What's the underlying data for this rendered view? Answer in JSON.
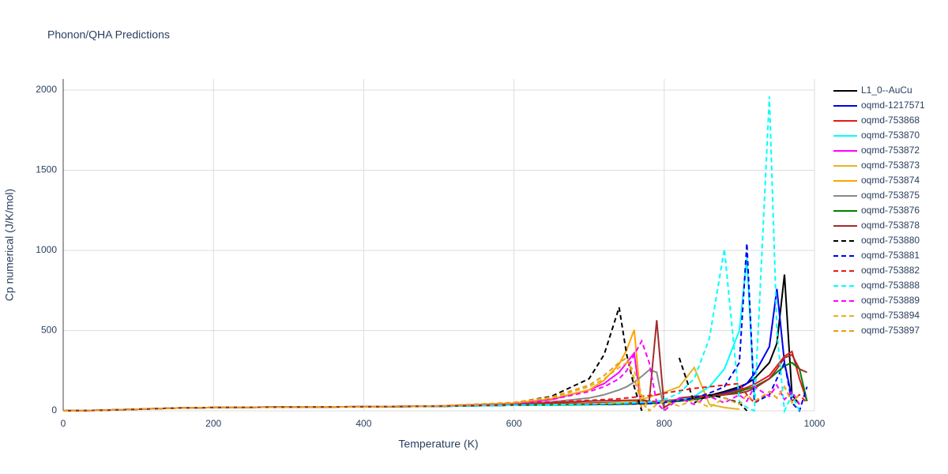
{
  "chart_data": {
    "type": "line",
    "title": "Phonon/QHA Predictions",
    "x_label": "Temperature (K)",
    "y_label": "Cp numerical (J/K/mol)",
    "xlim": [
      0,
      1000
    ],
    "ylim": [
      0,
      2000
    ],
    "xticks": [
      0,
      200,
      400,
      600,
      800,
      1000
    ],
    "yticks": [
      0,
      500,
      1000,
      1500,
      2000
    ],
    "grid": true,
    "x": [
      0,
      50,
      100,
      150,
      200,
      300,
      400,
      500,
      600,
      650,
      700,
      720,
      740,
      750,
      760,
      770,
      780,
      790,
      800,
      820,
      840,
      860,
      880,
      900,
      910,
      920,
      940,
      950,
      960,
      970,
      980,
      990
    ],
    "series": [
      {
        "name": "L1_0--AuCu",
        "color": "#000000",
        "dash": false,
        "values": [
          0,
          3,
          10,
          17,
          20,
          23,
          25,
          28,
          35,
          38,
          40,
          41,
          42,
          43,
          44,
          45,
          47,
          50,
          55,
          65,
          80,
          95,
          120,
          150,
          170,
          200,
          300,
          420,
          850,
          100,
          40,
          null
        ]
      },
      {
        "name": "oqmd-1217571",
        "color": "#0000ee",
        "dash": false,
        "values": [
          0,
          3,
          10,
          17,
          20,
          23,
          25,
          28,
          35,
          38,
          40,
          41,
          42,
          43,
          44,
          45,
          46,
          48,
          52,
          60,
          70,
          85,
          110,
          140,
          170,
          230,
          400,
          760,
          300,
          80,
          null,
          null
        ]
      },
      {
        "name": "oqmd-753868",
        "color": "#e41a1c",
        "dash": false,
        "values": [
          0,
          3,
          10,
          17,
          20,
          23,
          25,
          28,
          40,
          44,
          48,
          50,
          52,
          53,
          54,
          55,
          57,
          59,
          63,
          70,
          80,
          90,
          105,
          130,
          145,
          165,
          220,
          280,
          340,
          370,
          200,
          60
        ]
      },
      {
        "name": "oqmd-753870",
        "color": "#00ffff",
        "dash": false,
        "values": [
          0,
          3,
          10,
          17,
          20,
          23,
          25,
          28,
          35,
          36,
          38,
          40,
          42,
          43,
          44,
          45,
          47,
          50,
          55,
          65,
          90,
          150,
          260,
          500,
          950,
          80,
          null,
          null,
          null,
          null,
          null,
          null
        ]
      },
      {
        "name": "oqmd-753872",
        "color": "#ff00ff",
        "dash": false,
        "values": [
          0,
          3,
          10,
          17,
          20,
          23,
          25,
          30,
          45,
          70,
          130,
          170,
          240,
          300,
          360,
          0,
          null,
          null,
          null,
          null,
          null,
          null,
          null,
          null,
          null,
          null,
          null,
          null,
          null,
          null,
          null,
          null
        ]
      },
      {
        "name": "oqmd-753873",
        "color": "#e6b422",
        "dash": false,
        "values": [
          0,
          3,
          10,
          17,
          20,
          23,
          25,
          28,
          35,
          38,
          42,
          45,
          50,
          55,
          60,
          70,
          85,
          100,
          115,
          150,
          270,
          40,
          20,
          10,
          null,
          null,
          null,
          null,
          null,
          null,
          null,
          null
        ]
      },
      {
        "name": "oqmd-753874",
        "color": "#ffa500",
        "dash": false,
        "values": [
          0,
          3,
          10,
          17,
          20,
          23,
          25,
          30,
          48,
          75,
          130,
          190,
          290,
          380,
          505,
          0,
          null,
          null,
          null,
          null,
          null,
          null,
          null,
          null,
          null,
          null,
          null,
          null,
          null,
          null,
          null,
          null
        ]
      },
      {
        "name": "oqmd-753875",
        "color": "#888888",
        "dash": false,
        "values": [
          0,
          3,
          10,
          17,
          20,
          23,
          25,
          29,
          40,
          55,
          80,
          100,
          130,
          150,
          180,
          215,
          255,
          240,
          0,
          null,
          null,
          null,
          null,
          null,
          null,
          null,
          null,
          null,
          null,
          null,
          null,
          null
        ]
      },
      {
        "name": "oqmd-753876",
        "color": "#008000",
        "dash": false,
        "values": [
          0,
          3,
          10,
          17,
          20,
          23,
          25,
          28,
          35,
          37,
          39,
          40,
          41,
          42,
          43,
          44,
          46,
          48,
          52,
          60,
          70,
          85,
          100,
          120,
          135,
          150,
          200,
          240,
          280,
          300,
          260,
          60
        ]
      },
      {
        "name": "oqmd-753878",
        "color": "#a52a2a",
        "dash": false,
        "values": [
          0,
          3,
          10,
          17,
          20,
          23,
          25,
          29,
          40,
          50,
          60,
          62,
          64,
          65,
          66,
          67,
          60,
          565,
          20,
          80,
          90,
          95,
          100,
          110,
          120,
          140,
          200,
          260,
          330,
          350,
          260,
          240
        ]
      },
      {
        "name": "oqmd-753880",
        "color": "#000000",
        "dash": true,
        "values": [
          0,
          3,
          10,
          17,
          20,
          23,
          25,
          30,
          50,
          90,
          200,
          350,
          645,
          350,
          150,
          0,
          null,
          null,
          null,
          330,
          50,
          100,
          80,
          50,
          0,
          null,
          null,
          null,
          null,
          null,
          null,
          null
        ]
      },
      {
        "name": "oqmd-753881",
        "color": "#0000ee",
        "dash": true,
        "values": [
          0,
          3,
          10,
          17,
          20,
          23,
          25,
          28,
          35,
          38,
          40,
          41,
          42,
          43,
          44,
          45,
          46,
          48,
          52,
          65,
          80,
          110,
          150,
          300,
          1045,
          50,
          100,
          200,
          300,
          50,
          0,
          150
        ]
      },
      {
        "name": "oqmd-753882",
        "color": "#e41a1c",
        "dash": true,
        "values": [
          0,
          3,
          10,
          17,
          20,
          23,
          25,
          30,
          45,
          55,
          65,
          70,
          75,
          80,
          85,
          90,
          95,
          100,
          110,
          125,
          140,
          150,
          160,
          170,
          100,
          50,
          120,
          80,
          150,
          60,
          100,
          50
        ]
      },
      {
        "name": "oqmd-753888",
        "color": "#00ffff",
        "dash": true,
        "values": [
          0,
          3,
          10,
          17,
          20,
          23,
          25,
          28,
          35,
          38,
          42,
          44,
          46,
          48,
          50,
          52,
          55,
          60,
          70,
          110,
          200,
          450,
          1010,
          60,
          20,
          0,
          1960,
          500,
          0,
          100,
          0,
          null
        ]
      },
      {
        "name": "oqmd-753889",
        "color": "#ff00ff",
        "dash": true,
        "values": [
          0,
          3,
          10,
          17,
          20,
          23,
          25,
          30,
          45,
          70,
          120,
          150,
          200,
          250,
          350,
          435,
          300,
          50,
          0,
          80,
          40,
          90,
          50,
          100,
          60,
          150,
          90,
          160,
          70,
          120,
          40,
          null
        ]
      },
      {
        "name": "oqmd-753894",
        "color": "#e6b422",
        "dash": true,
        "values": [
          0,
          3,
          10,
          17,
          20,
          23,
          25,
          30,
          50,
          80,
          150,
          200,
          270,
          300,
          250,
          100,
          0,
          40,
          60,
          30,
          70,
          20,
          80,
          40,
          100,
          60,
          120,
          80,
          150,
          50,
          100,
          null
        ]
      },
      {
        "name": "oqmd-753897",
        "color": "#e5a00d",
        "dash": true,
        "values": [
          0,
          3,
          10,
          17,
          20,
          23,
          25,
          30,
          52,
          85,
          160,
          220,
          300,
          330,
          200,
          50,
          0,
          null,
          null,
          null,
          null,
          null,
          null,
          null,
          null,
          null,
          null,
          null,
          null,
          null,
          null,
          null
        ]
      }
    ]
  }
}
